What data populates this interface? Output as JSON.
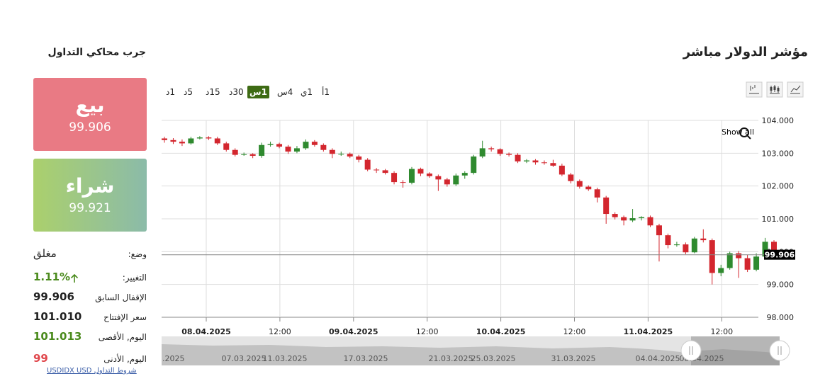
{
  "header": {
    "title": "مؤشر الدولار مباشر",
    "simulator": "جرب محاكي التداول"
  },
  "sell": {
    "label": "بيع",
    "price": "99.906"
  },
  "buy": {
    "label": "شراء",
    "price": "99.921"
  },
  "stats": [
    {
      "label": "وضع:",
      "value": "مغلق"
    },
    {
      "label": "التغيير:",
      "value": "1.11%"
    },
    {
      "label": "الإقفال السابق",
      "value": "99.906"
    },
    {
      "label": "سعر الإفتتاح",
      "value": "101.010"
    },
    {
      "label": "اليوم, الأقصى",
      "value": "101.013"
    },
    {
      "label": "اليوم, الأدنى",
      "value": "99"
    }
  ],
  "link": {
    "symbol": "USDIDX USD",
    "terms": "شروط التداول"
  },
  "timeframes": [
    "1أ",
    "1ي",
    "4س",
    "1س",
    "30د",
    "15د",
    "5د",
    "1د"
  ],
  "active_timeframe": "1س",
  "chart_data": {
    "type": "candlestick",
    "show_all": "Show all",
    "ylim": [
      98,
      104
    ],
    "yticks": [
      {
        "value": 104,
        "label": "104.000"
      },
      {
        "value": 103,
        "label": "103.000"
      },
      {
        "value": 102,
        "label": "102.000"
      },
      {
        "value": 101,
        "label": "101.000"
      },
      {
        "value": 100,
        "label": "100.000"
      },
      {
        "value": 99,
        "label": "99.000"
      },
      {
        "value": 98,
        "label": "98.000"
      }
    ],
    "grid": true,
    "up_color": "#2f8a2f",
    "down_color": "#d3262e",
    "xtick_labels": [
      "08.04.2025",
      "12:00",
      "09.04.2025",
      "12:00",
      "10.04.2025",
      "12:00",
      "11.04.2025",
      "12:00"
    ],
    "navigator_labels": [
      ".2025",
      "07.03.2025",
      "11.03.2025",
      "17.03.2025",
      "21.03.2025",
      "25.03.2025",
      "31.03.2025",
      "04.04.2025",
      "08.04.2025"
    ],
    "open": [
      103.45,
      103.4,
      103.35,
      103.3,
      103.45,
      103.48,
      103.45,
      103.3,
      103.1,
      102.95,
      102.97,
      102.92,
      103.25,
      103.28,
      103.2,
      103.05,
      103.15,
      103.35,
      103.25,
      103.1,
      102.98,
      102.98,
      102.9,
      102.8,
      102.5,
      102.48,
      102.4,
      102.12,
      102.1,
      102.52,
      102.38,
      102.3,
      102.2,
      102.05,
      102.32,
      102.4,
      102.9,
      103.15,
      103.12,
      102.98,
      102.95,
      102.75,
      102.78,
      102.72,
      102.7,
      102.62,
      102.35,
      102.15,
      101.98,
      101.9,
      101.65,
      101.15,
      101.05,
      100.95,
      101.02,
      101.05,
      100.8,
      100.5,
      100.2,
      100.22,
      99.98,
      100.4,
      100.35,
      99.35,
      99.5,
      99.95,
      99.8,
      99.45,
      99.85,
      100.3
    ],
    "high": [
      103.5,
      103.46,
      103.42,
      103.5,
      103.52,
      103.52,
      103.5,
      103.35,
      103.15,
      103.02,
      103.0,
      103.32,
      103.35,
      103.32,
      103.25,
      103.22,
      103.42,
      103.4,
      103.3,
      103.15,
      103.05,
      103.02,
      102.95,
      102.85,
      102.55,
      102.52,
      102.45,
      102.18,
      102.58,
      102.56,
      102.42,
      102.35,
      102.25,
      102.38,
      102.45,
      102.95,
      103.38,
      103.2,
      103.15,
      103.02,
      103.0,
      102.82,
      102.82,
      102.78,
      102.8,
      102.68,
      102.4,
      102.2,
      102.02,
      101.95,
      101.7,
      101.2,
      101.1,
      101.3,
      101.08,
      101.1,
      100.85,
      100.55,
      100.3,
      100.28,
      100.45,
      100.68,
      100.4,
      99.6,
      100.0,
      100.02,
      99.9,
      99.95,
      100.42,
      100.35
    ],
    "low": [
      103.32,
      103.28,
      103.22,
      103.26,
      103.42,
      103.4,
      103.25,
      103.05,
      102.9,
      102.92,
      102.85,
      102.86,
      103.2,
      103.15,
      102.98,
      103.0,
      103.1,
      103.2,
      103.05,
      102.85,
      102.92,
      102.85,
      102.72,
      102.45,
      102.4,
      102.35,
      102.05,
      101.95,
      102.05,
      102.3,
      102.25,
      101.85,
      101.98,
      102.0,
      102.22,
      102.35,
      102.85,
      103.05,
      102.92,
      102.9,
      102.7,
      102.7,
      102.65,
      102.65,
      102.58,
      102.3,
      102.08,
      101.92,
      101.85,
      101.5,
      100.85,
      100.98,
      100.8,
      100.9,
      100.95,
      100.75,
      99.7,
      100.1,
      100.15,
      99.92,
      99.95,
      100.28,
      99.0,
      99.25,
      99.45,
      99.2,
      99.38,
      99.4,
      99.8,
      99.88
    ],
    "close": [
      103.4,
      103.35,
      103.3,
      103.45,
      103.48,
      103.45,
      103.3,
      103.1,
      102.95,
      102.97,
      102.92,
      103.25,
      103.28,
      103.2,
      103.05,
      103.15,
      103.35,
      103.25,
      103.1,
      102.98,
      102.98,
      102.9,
      102.8,
      102.5,
      102.48,
      102.4,
      102.12,
      102.1,
      102.52,
      102.38,
      102.3,
      102.2,
      102.05,
      102.32,
      102.4,
      102.9,
      103.15,
      103.12,
      102.98,
      102.95,
      102.75,
      102.78,
      102.72,
      102.7,
      102.62,
      102.35,
      102.15,
      101.98,
      101.9,
      101.65,
      101.15,
      101.05,
      100.95,
      101.02,
      101.05,
      100.8,
      100.5,
      100.2,
      100.22,
      99.98,
      100.4,
      100.35,
      99.35,
      99.5,
      99.95,
      99.8,
      99.45,
      99.85,
      100.3,
      99.906
    ]
  }
}
